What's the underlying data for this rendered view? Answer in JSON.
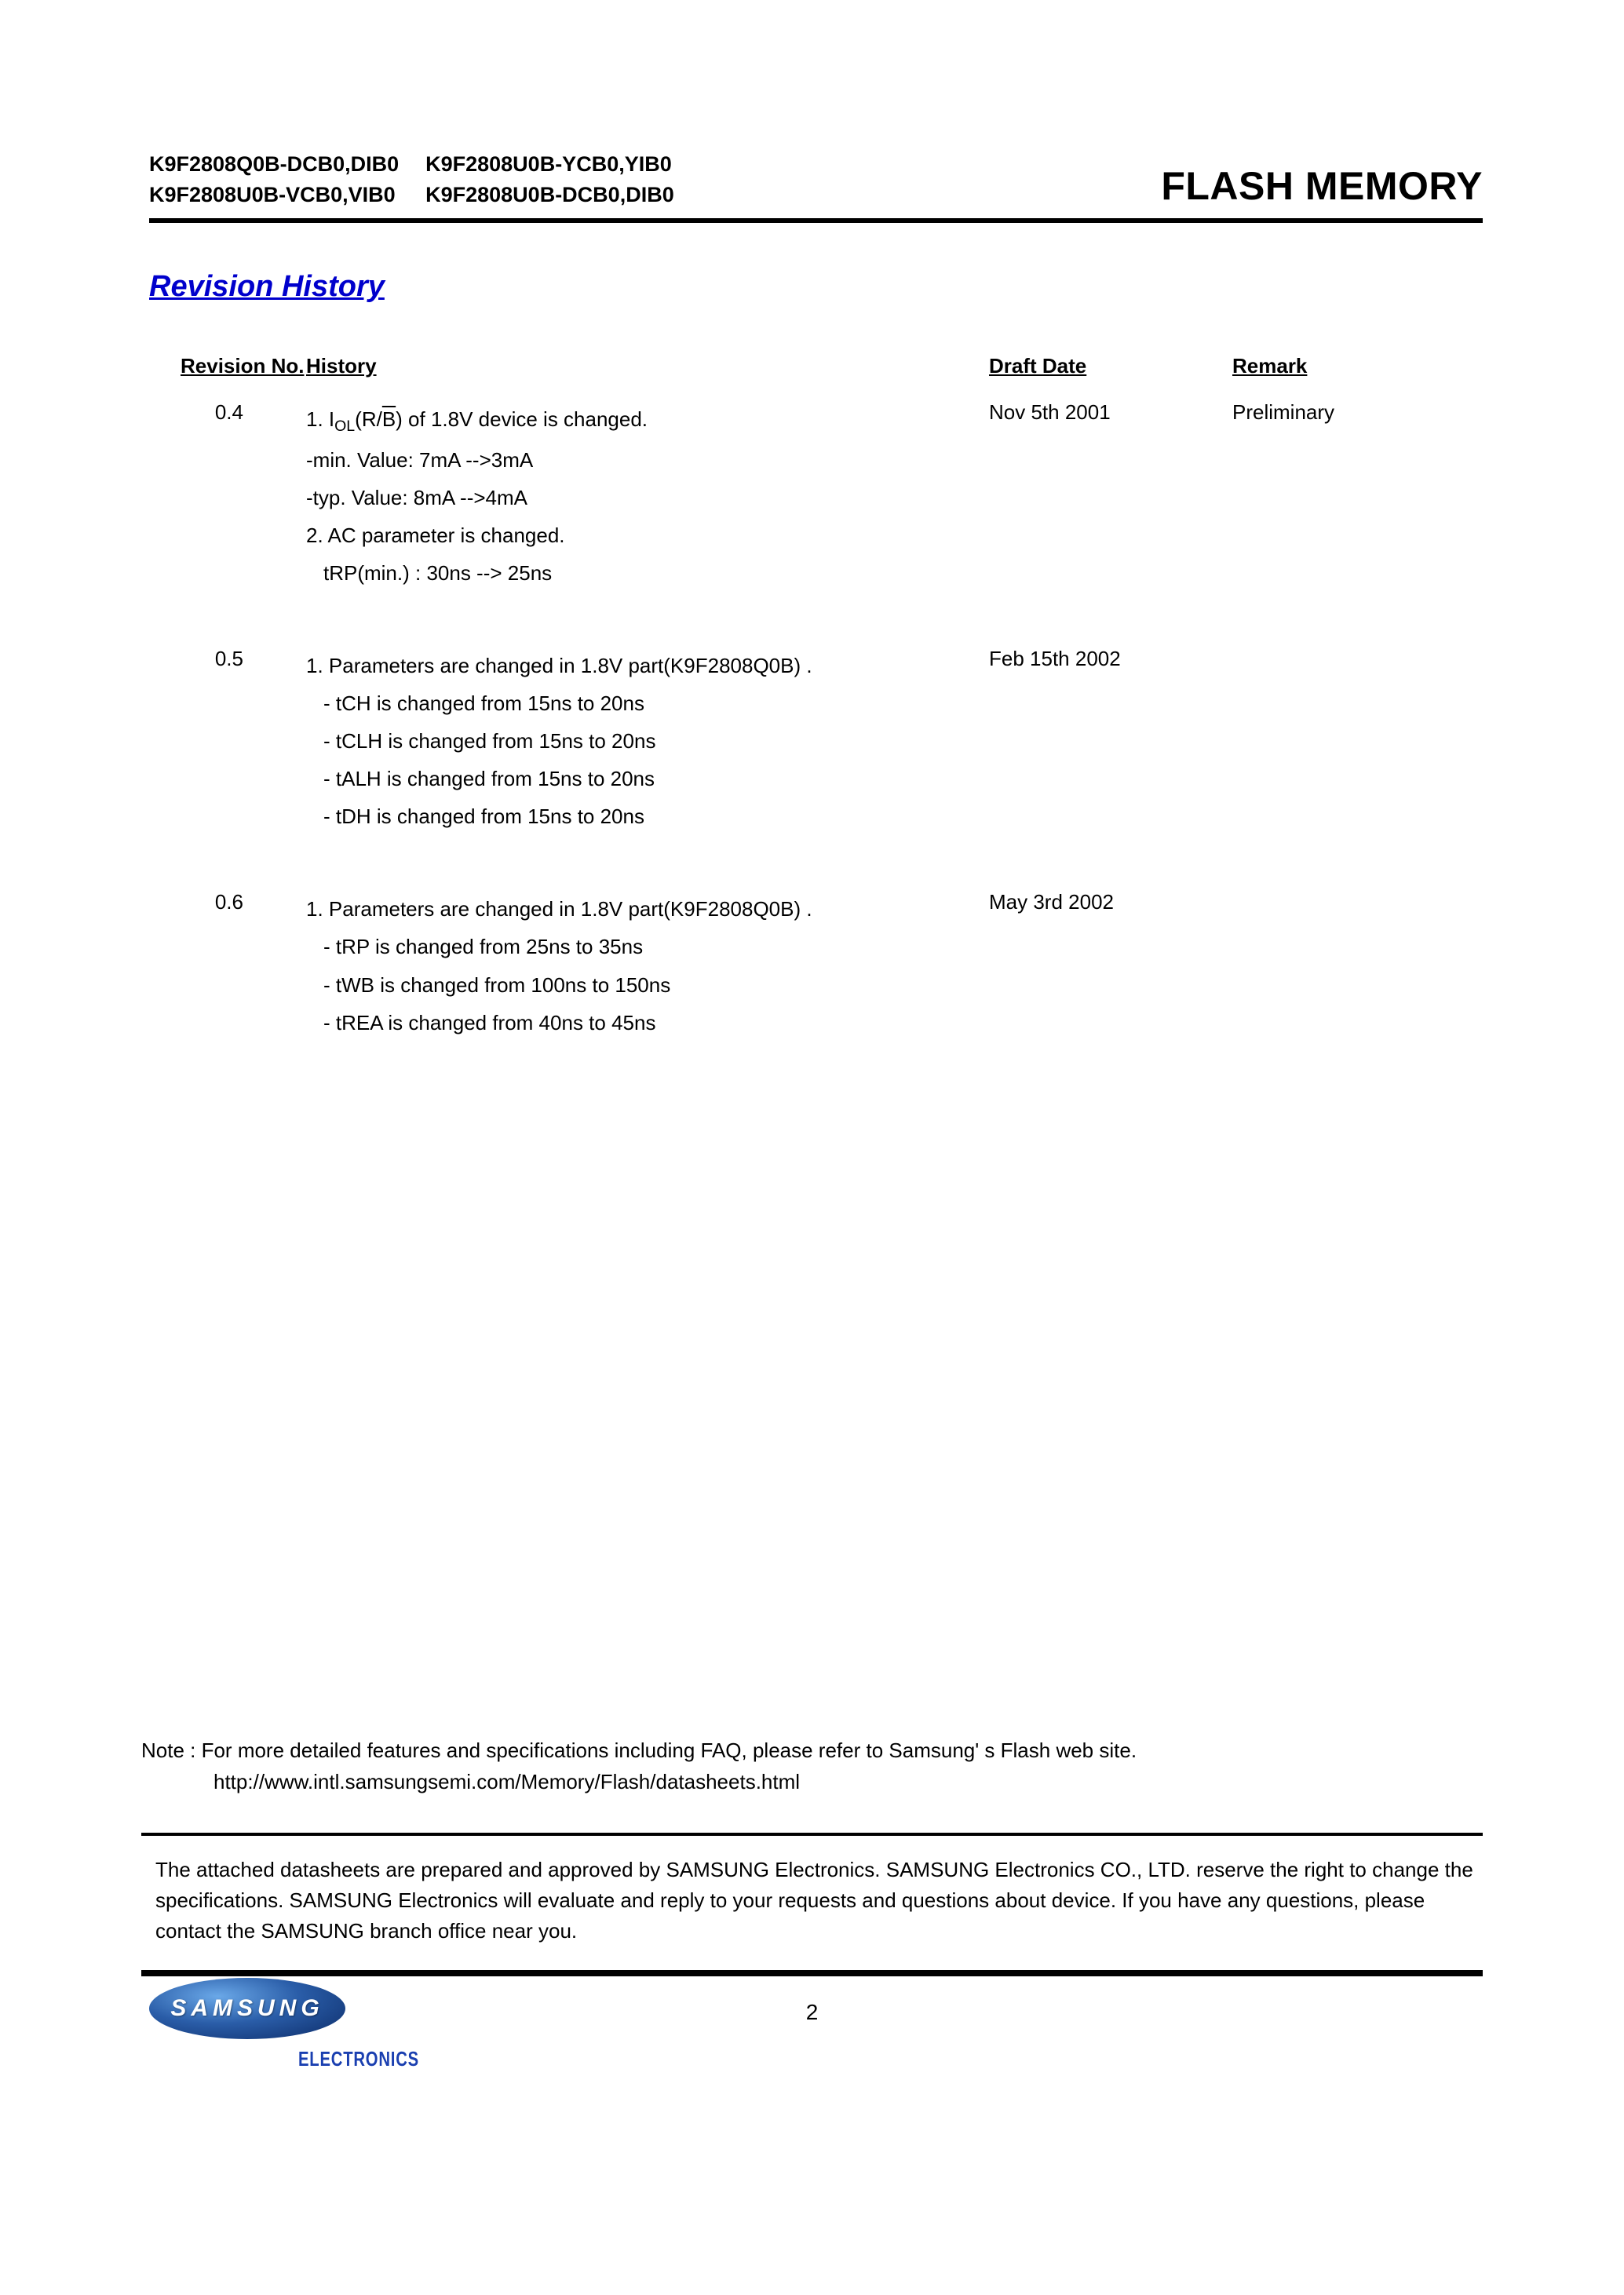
{
  "header": {
    "parts_col1": [
      "K9F2808Q0B-DCB0,DIB0",
      "K9F2808U0B-VCB0,VIB0"
    ],
    "parts_col2": [
      "K9F2808U0B-YCB0,YIB0",
      "K9F2808U0B-DCB0,DIB0"
    ],
    "title": "FLASH MEMORY"
  },
  "section_title": "Revision History",
  "columns": {
    "rev": "Revision No.",
    "hist": "History",
    "date": "Draft Date",
    "rem": "Remark"
  },
  "revisions": [
    {
      "no": "0.4",
      "date": "Nov 5th 2001",
      "remark": "Preliminary",
      "lines": [
        {
          "text_pre": "1. I",
          "sub": "OL",
          "text_mid": "(R/",
          "over": "B",
          "text_post": ") of 1.8V device is changed.",
          "indent": false
        },
        {
          "text": "-min. Value: 7mA -->3mA",
          "indent": false
        },
        {
          "text": "-typ. Value: 8mA -->4mA",
          "indent": false
        },
        {
          "text": "2. AC parameter is changed.",
          "indent": false
        },
        {
          "text": "tRP(min.)  :  30ns --> 25ns",
          "indent": true
        }
      ]
    },
    {
      "no": "0.5",
      "date": "Feb 15th 2002",
      "remark": "",
      "lines": [
        {
          "text": "1.  Parameters are changed in 1.8V part(K9F2808Q0B) .",
          "indent": false
        },
        {
          "text": "- tCH is changed from 15ns  to 20ns",
          "indent": true
        },
        {
          "text": "- tCLH is changed from 15ns  to 20ns",
          "indent": true
        },
        {
          "text": "- tALH is changed from 15ns  to 20ns",
          "indent": true
        },
        {
          "text": "- tDH is changed from 15ns  to 20ns",
          "indent": true
        }
      ]
    },
    {
      "no": "0.6",
      "date": "May 3rd 2002",
      "remark": "",
      "lines": [
        {
          "text": "1.  Parameters are changed in 1.8V part(K9F2808Q0B) .",
          "indent": false
        },
        {
          "text": "- tRP is changed from 25ns  to 35ns",
          "indent": true
        },
        {
          "text": "- tWB is changed from 100ns  to 150ns",
          "indent": true
        },
        {
          "text": "- tREA is changed from 40ns  to 45ns",
          "indent": true
        }
      ]
    }
  ],
  "note": {
    "label": "Note : ",
    "text": "For more detailed features and specifications including FAQ, please refer to Samsung' s Flash web site.",
    "url": "http://www.intl.samsungsemi.com/Memory/Flash/datasheets.html"
  },
  "disclaimer": " The attached datasheets are prepared and approved by SAMSUNG Electronics. SAMSUNG Electronics CO., LTD. reserve the right to change the specifications. SAMSUNG Electronics will evaluate and reply to your requests and questions about device. If you have any questions, please contact the SAMSUNG branch office near you.",
  "footer": {
    "logo": "SAMSUNG",
    "sub": "ELECTRONICS",
    "page": "2"
  }
}
